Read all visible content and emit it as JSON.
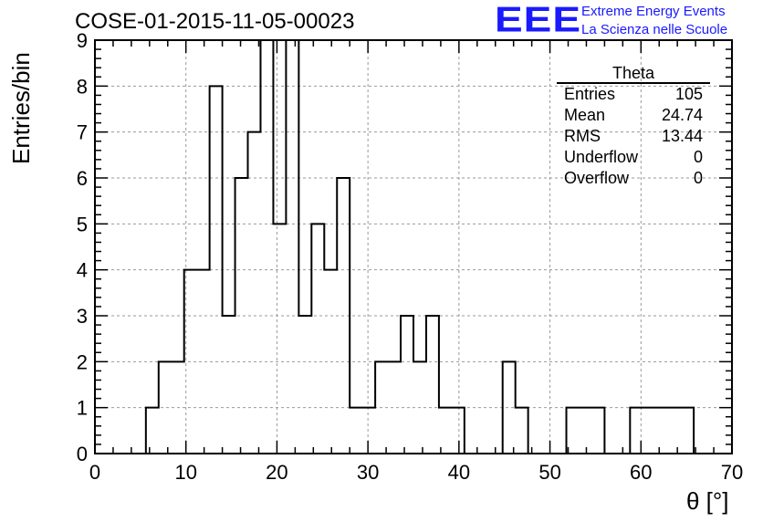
{
  "title": "COSE-01-2015-11-05-00023",
  "logo": {
    "mark": "EEE",
    "line1": "Extreme Energy Events",
    "line2": "La Scienza nelle Scuole",
    "color": "#1a1aff"
  },
  "stats_box": {
    "title": "Theta",
    "rows": [
      {
        "label": "Entries",
        "value": "105"
      },
      {
        "label": "Mean",
        "value": "24.74"
      },
      {
        "label": "RMS",
        "value": "13.44"
      },
      {
        "label": "Underflow",
        "value": "0"
      },
      {
        "label": "Overflow",
        "value": "0"
      }
    ]
  },
  "chart_data": {
    "type": "bar",
    "histogram": true,
    "title": "COSE-01-2015-11-05-00023",
    "xlabel": "θ [°]",
    "ylabel": "Entries/bin",
    "xlim": [
      0,
      70
    ],
    "ylim": [
      0,
      9
    ],
    "x_ticks": [
      0,
      10,
      20,
      30,
      40,
      50,
      60,
      70
    ],
    "y_ticks": [
      0,
      1,
      2,
      3,
      4,
      5,
      6,
      7,
      8,
      9
    ],
    "grid": true,
    "bin_width": 1.4,
    "bin_start": 5.6,
    "values": [
      1,
      2,
      2,
      4,
      4,
      8,
      3,
      6,
      7,
      9,
      5,
      9,
      3,
      5,
      4,
      6,
      1,
      1,
      2,
      2,
      3,
      2,
      3,
      1,
      1,
      0,
      0,
      0,
      2,
      1,
      0,
      0,
      0,
      1,
      1,
      1,
      0,
      0,
      1,
      1,
      1,
      1,
      1
    ]
  }
}
